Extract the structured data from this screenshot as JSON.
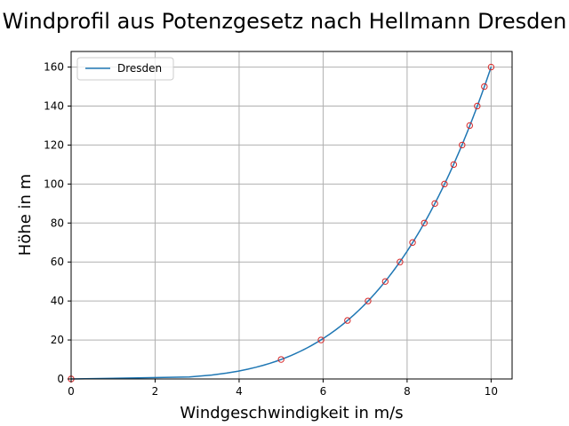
{
  "chart_data": {
    "type": "line",
    "title": "Windprofil aus Potenzgesetz nach Hellmann Dresden",
    "xlabel": "Windgeschwindigkeit in m/s",
    "ylabel": "Höhe in m",
    "xlim": [
      0,
      10.5
    ],
    "ylim": [
      0,
      168
    ],
    "xticks": [
      0,
      2,
      4,
      6,
      8,
      10
    ],
    "yticks": [
      0,
      20,
      40,
      60,
      80,
      100,
      120,
      140,
      160
    ],
    "grid": true,
    "legend_position": "top-left",
    "series": [
      {
        "name": "Dresden",
        "color": "#1f77b4",
        "curve": "power",
        "reference_speed": 10,
        "reference_height": 160,
        "exponent": 0.25
      }
    ],
    "markers": {
      "color": "#d62728",
      "points": [
        [
          0,
          0
        ],
        [
          5.0,
          10
        ],
        [
          5.95,
          20
        ],
        [
          6.58,
          30
        ],
        [
          7.07,
          40
        ],
        [
          7.48,
          50
        ],
        [
          7.83,
          60
        ],
        [
          8.13,
          70
        ],
        [
          8.41,
          80
        ],
        [
          8.66,
          90
        ],
        [
          8.89,
          100
        ],
        [
          9.11,
          110
        ],
        [
          9.31,
          120
        ],
        [
          9.49,
          130
        ],
        [
          9.67,
          140
        ],
        [
          9.84,
          150
        ],
        [
          10.0,
          160
        ]
      ]
    }
  }
}
